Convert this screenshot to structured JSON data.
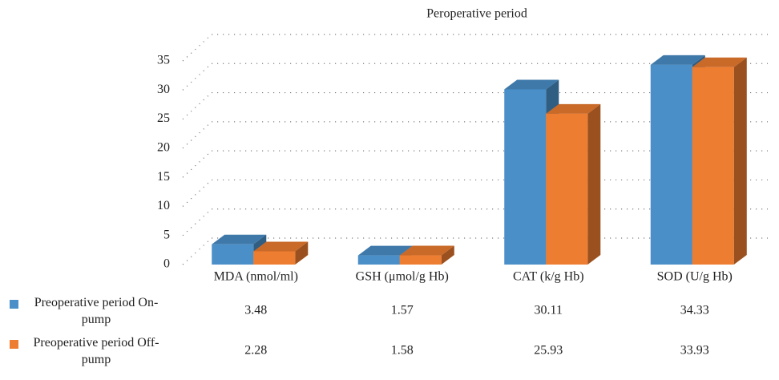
{
  "chart_data": {
    "type": "bar",
    "title": "Peroperative period",
    "categories": [
      "MDA (nmol/ml)",
      "GSH (μmol/g Hb)",
      "CAT (k/g Hb)",
      "SOD (U/g Hb)"
    ],
    "series": [
      {
        "name": "Preoperative period On-pump",
        "color": "#4a8fc8",
        "values": [
          3.48,
          1.57,
          30.11,
          34.33
        ]
      },
      {
        "name": "Preoperative period Off-pump",
        "color": "#ed7d31",
        "values": [
          2.28,
          1.58,
          25.93,
          33.93
        ]
      }
    ],
    "ylim": [
      0,
      35
    ],
    "yticks": [
      0,
      5,
      10,
      15,
      20,
      25,
      30,
      35
    ],
    "grid": true
  }
}
